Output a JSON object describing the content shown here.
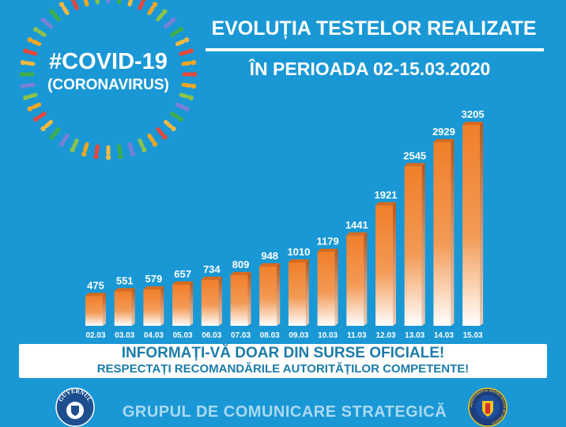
{
  "header": {
    "hashtag": "#COVID-19",
    "subtitle": "(CORONAVIRUS)",
    "title_line1": "EVOLUȚIA TESTELOR REALIZATE",
    "title_line2": "ÎN PERIOADA 02-15.03.2020"
  },
  "chart_data": {
    "type": "bar",
    "title": "EVOLUȚIA TESTELOR REALIZATE ÎN PERIOADA 02-15.03.2020",
    "xlabel": "",
    "ylabel": "",
    "categories": [
      "02.03",
      "03.03",
      "04.03",
      "05.03",
      "06.03",
      "07.03",
      "08.03",
      "09.03",
      "10.03",
      "11.03",
      "12.03",
      "13.03",
      "14.03",
      "15.03"
    ],
    "values": [
      475,
      551,
      579,
      657,
      734,
      809,
      948,
      1010,
      1179,
      1441,
      1921,
      2545,
      2929,
      3205
    ],
    "ylim": [
      0,
      3205
    ],
    "grid": false,
    "legend": "none",
    "bar_color": "#f07f2a"
  },
  "banner": {
    "line1": "INFORMAȚI-VĂ DOAR DIN SURSE OFICIALE!",
    "line2": "RESPECTAȚI RECOMANDĂRILE AUTORITĂȚILOR COMPETENTE!"
  },
  "footer": {
    "organization": "GRUPUL DE COMUNICARE STRATEGICĂ",
    "left_logo_text": "GUVERNUL",
    "right_logo_text": "DEPARTAMENTUL PENTRU SITUAȚII DE URGENȚĂ"
  }
}
